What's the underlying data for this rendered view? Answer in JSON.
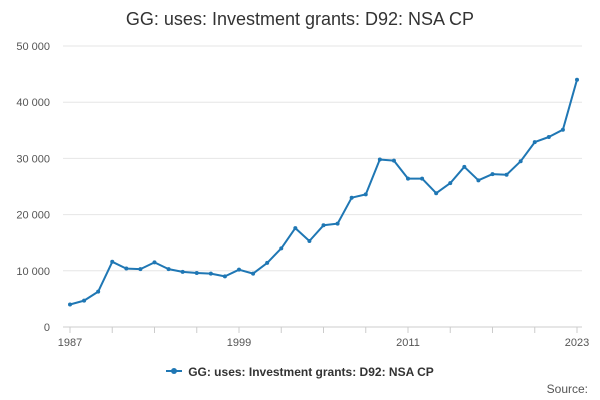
{
  "chart_data": {
    "type": "line",
    "title": "GG: uses: Investment grants: D92: NSA CP",
    "xlabel": "",
    "ylabel": "",
    "x": [
      1987,
      1988,
      1989,
      1990,
      1991,
      1992,
      1993,
      1994,
      1995,
      1996,
      1997,
      1998,
      1999,
      2000,
      2001,
      2002,
      2003,
      2004,
      2005,
      2006,
      2007,
      2008,
      2009,
      2010,
      2011,
      2012,
      2013,
      2014,
      2015,
      2016,
      2017,
      2018,
      2019,
      2020,
      2021,
      2022,
      2023
    ],
    "series": [
      {
        "name": "GG: uses: Investment grants: D92: NSA CP",
        "color": "#1f77b4",
        "values": [
          4000,
          4700,
          6300,
          11600,
          10400,
          10300,
          11500,
          10300,
          9800,
          9600,
          9500,
          9000,
          10200,
          9500,
          11400,
          14000,
          17600,
          15300,
          18100,
          18400,
          23000,
          23600,
          29800,
          29600,
          26400,
          26400,
          23800,
          25600,
          28500,
          26100,
          27200,
          27100,
          29500,
          32900,
          33800,
          35100,
          44000
        ]
      }
    ],
    "ylim": [
      0,
      50000
    ],
    "yticks": [
      0,
      10000,
      20000,
      30000,
      40000,
      50000
    ],
    "ytick_labels": [
      "0",
      "10 000",
      "20 000",
      "30 000",
      "40 000",
      "50 000"
    ],
    "xticks": [
      1987,
      1999,
      2011,
      2023
    ],
    "xtick_labels": [
      "1987",
      "1999",
      "2011",
      "2023"
    ],
    "grid": true,
    "legend_position": "bottom",
    "source_label": "Source:"
  }
}
